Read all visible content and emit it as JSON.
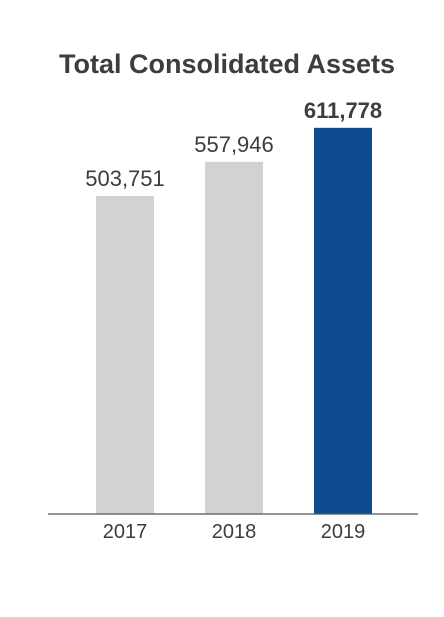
{
  "chart_data": {
    "type": "bar",
    "title": "Total Consolidated Assets",
    "categories": [
      "2017",
      "2018",
      "2019"
    ],
    "values": [
      503751,
      557946,
      611778
    ],
    "value_labels": [
      "503,751",
      "557,946",
      "611,778"
    ],
    "highlight_index": 2,
    "xlabel": "",
    "ylabel": "",
    "ylim": [
      0,
      640000
    ],
    "grid": false,
    "legend": "none",
    "colors": {
      "bar": "#d1d2d4",
      "highlight": "#0e4c8f",
      "text": "#3d3d3d",
      "axis": "#555555"
    }
  }
}
